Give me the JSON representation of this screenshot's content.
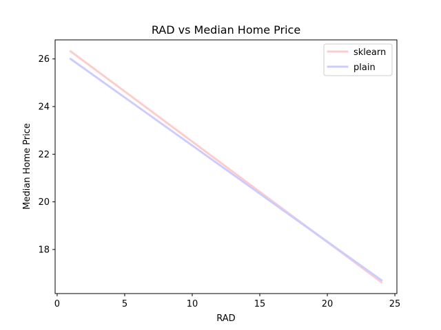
{
  "chart_data": {
    "type": "line",
    "title": "RAD vs Median Home Price",
    "xlabel": "RAD",
    "ylabel": "Median Home Price",
    "xlim": [
      -0.15,
      25.15
    ],
    "ylim": [
      16.15,
      26.8
    ],
    "xticks": [
      0,
      5,
      10,
      15,
      20,
      25
    ],
    "xtick_labels": [
      "0",
      "5",
      "10",
      "15",
      "20",
      "25"
    ],
    "yticks": [
      18,
      20,
      22,
      24,
      26
    ],
    "ytick_labels": [
      "18",
      "20",
      "22",
      "24",
      "26"
    ],
    "grid": false,
    "legend_position": "top-right",
    "series": [
      {
        "name": "sklearn",
        "color": "#ffcccc",
        "x": [
          1,
          24
        ],
        "y": [
          26.32,
          16.63
        ]
      },
      {
        "name": "plain",
        "color": "#ccccff",
        "x": [
          1,
          24
        ],
        "y": [
          26.0,
          16.71
        ]
      }
    ]
  }
}
